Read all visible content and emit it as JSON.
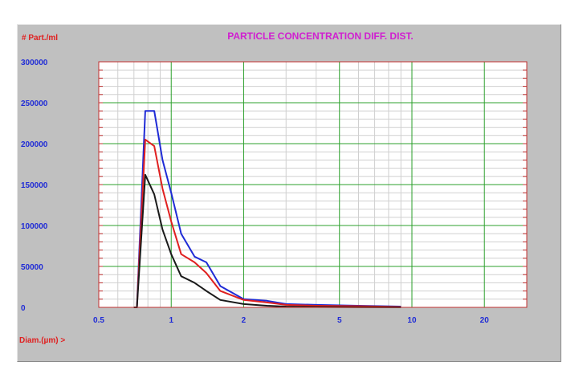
{
  "chart_data": {
    "type": "line",
    "title": "PARTICLE CONCENTRATION DIFF. DIST.",
    "ylabel": "# Part./ml",
    "xlabel": "Diam.(µm) >",
    "x_scale": "log",
    "xlim": [
      0.5,
      30
    ],
    "ylim": [
      0,
      300000
    ],
    "x_ticks": [
      0.5,
      1,
      2,
      5,
      10,
      20
    ],
    "x_tick_labels": [
      "0.5",
      "1",
      "2",
      "5",
      "10",
      "20"
    ],
    "y_ticks": [
      0,
      50000,
      100000,
      150000,
      200000,
      250000,
      300000
    ],
    "y_tick_labels": [
      "0",
      "50000",
      "100000",
      "150000",
      "200000",
      "250000",
      "300000"
    ],
    "grid": true,
    "series": [
      {
        "color": "#1f2bd6",
        "x": [
          0.7,
          0.72,
          0.78,
          0.85,
          0.92,
          1.0,
          1.1,
          1.25,
          1.4,
          1.6,
          2.0,
          2.5,
          3.0,
          4.0,
          6.0,
          9.0
        ],
        "y": [
          0,
          0,
          240000,
          240000,
          180000,
          140000,
          90000,
          62000,
          55000,
          26000,
          10000,
          8000,
          4000,
          3000,
          2000,
          1000
        ]
      },
      {
        "color": "#e02020",
        "x": [
          0.7,
          0.72,
          0.78,
          0.85,
          0.92,
          1.0,
          1.1,
          1.25,
          1.4,
          1.6,
          2.0,
          2.5,
          3.0,
          4.0,
          6.0,
          9.0
        ],
        "y": [
          0,
          0,
          205000,
          197000,
          145000,
          105000,
          65000,
          55000,
          42000,
          20000,
          9000,
          6000,
          3000,
          2000,
          1500,
          500
        ]
      },
      {
        "color": "#1a1a1a",
        "x": [
          0.7,
          0.72,
          0.78,
          0.85,
          0.92,
          1.0,
          1.1,
          1.25,
          1.4,
          1.6,
          2.0,
          2.5,
          3.0,
          4.0,
          6.0,
          9.0
        ],
        "y": [
          0,
          0,
          162000,
          138000,
          95000,
          65000,
          38000,
          30000,
          20000,
          9000,
          4000,
          2000,
          1000,
          500,
          300,
          100
        ]
      }
    ]
  },
  "colors": {
    "panel_bg": "#c0c0c0",
    "plot_bg": "#ffffff",
    "major_grid": "#2ca02c",
    "minor_grid": "#d0d0d0",
    "frame": "#c03030",
    "title_color": "#d020d0",
    "axis_title_color": "#e02020",
    "tick_label_color": "#1f2bd6"
  }
}
